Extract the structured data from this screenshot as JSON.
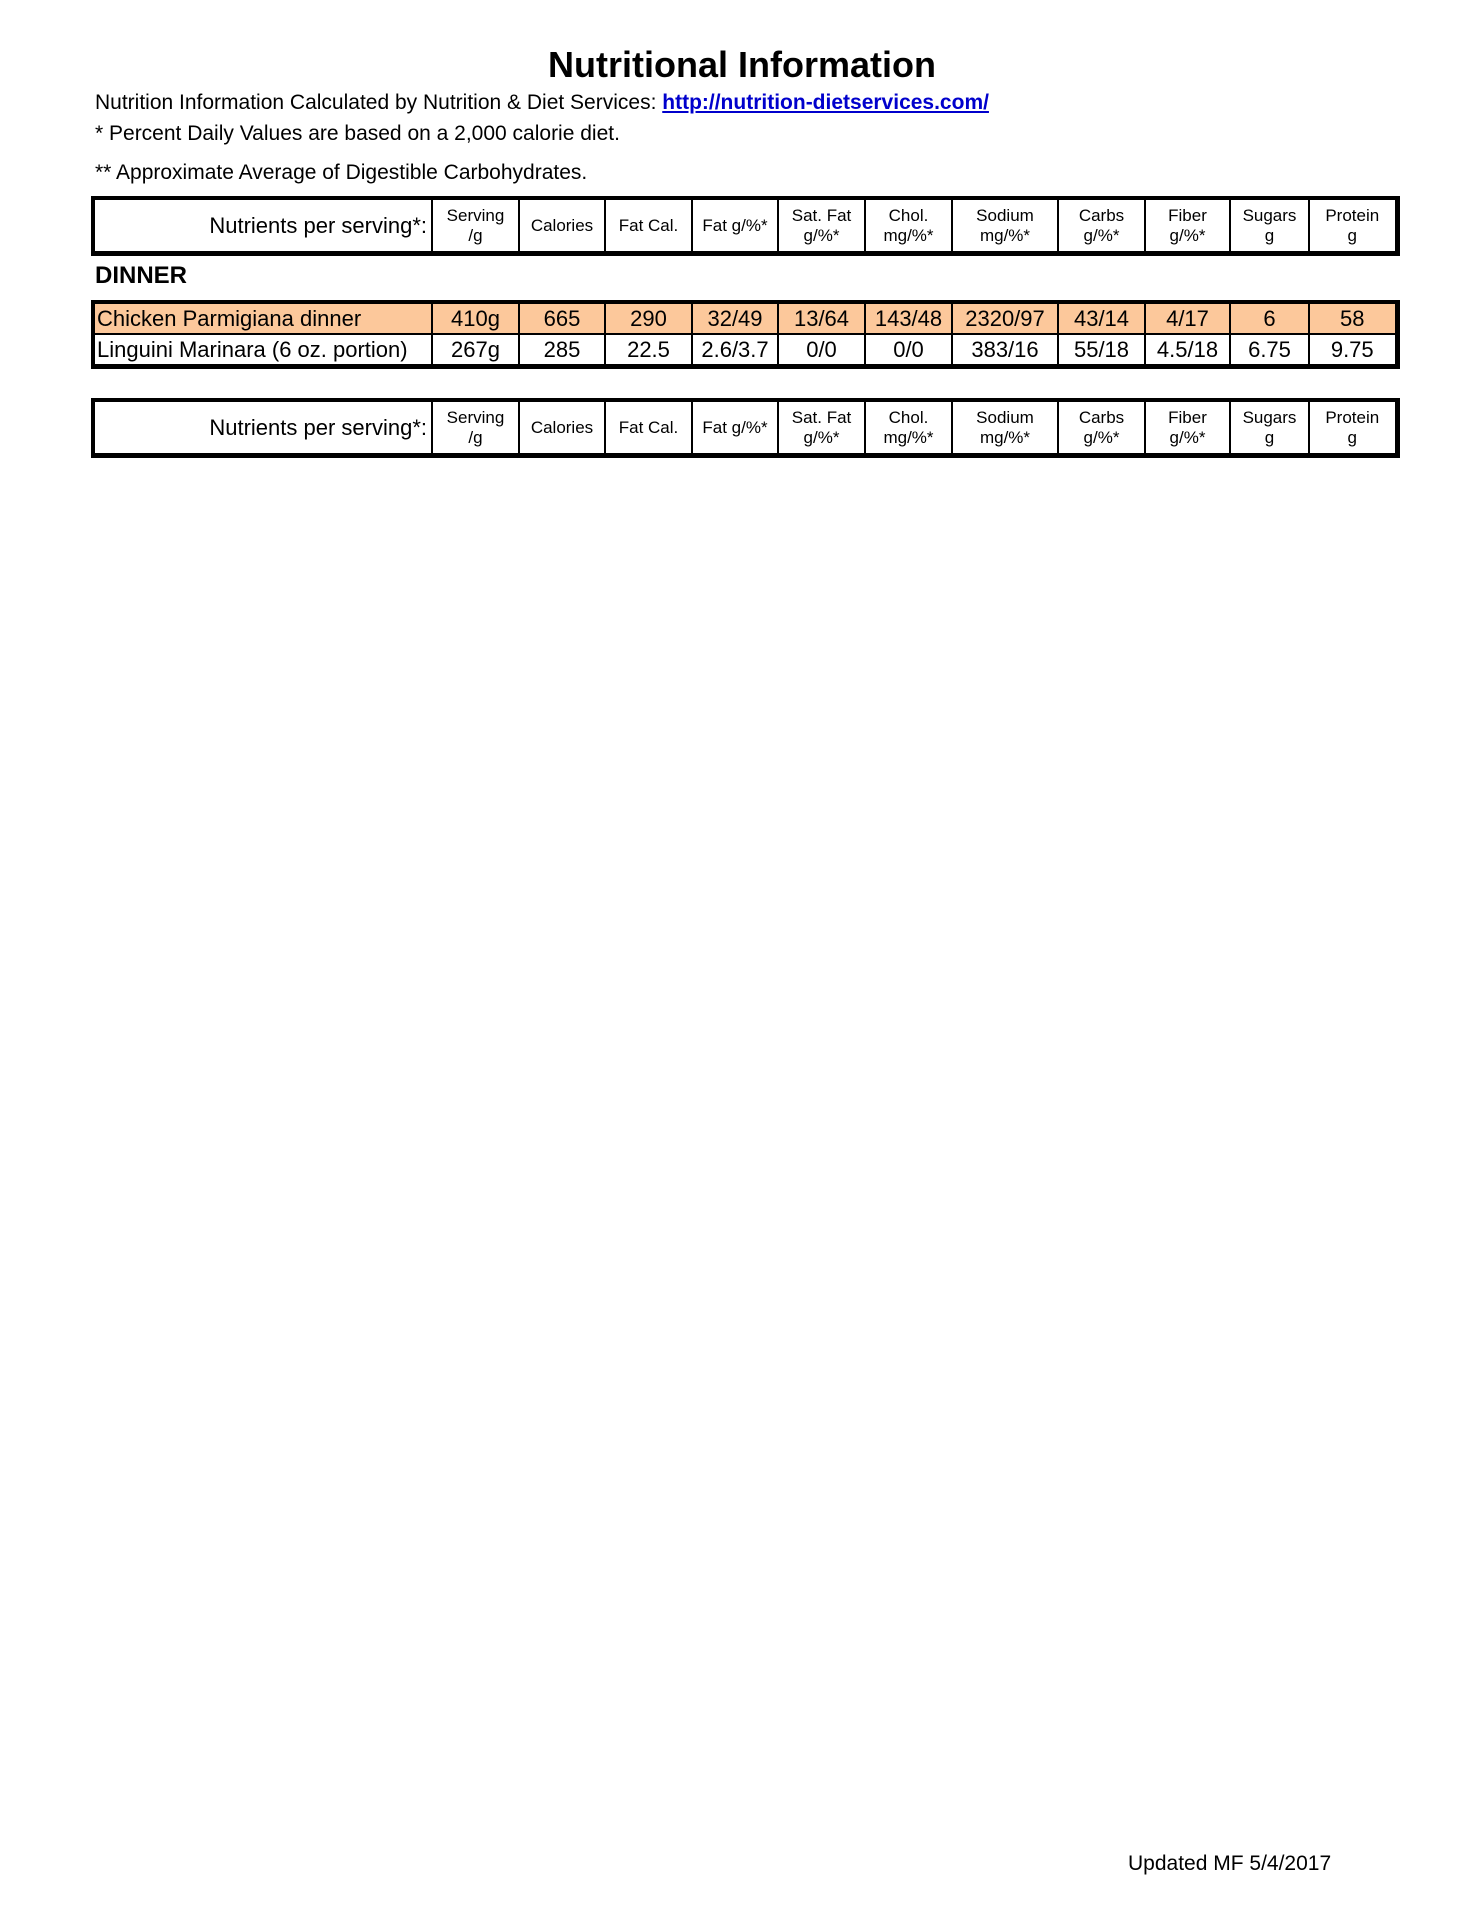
{
  "title": "Nutritional Information",
  "notes": {
    "calculated_by": "Nutrition Information Calculated by Nutrition & Diet Services: ",
    "link": "http://nutrition-dietservices.com/",
    "daily_values": "* Percent Daily Values are based on a 2,000 calorie diet.",
    "carbs_note": "** Approximate Average of Digestible Carbohydrates."
  },
  "header": [
    "Nutrients per serving*:",
    "Serving\n/g",
    "Calories",
    "Fat Cal.",
    "Fat g/%*",
    "Sat. Fat\ng/%*",
    "Chol.\nmg/%*",
    "Sodium\nmg/%*",
    "Carbs\ng/%*",
    "Fiber\ng/%*",
    "Sugars\ng",
    "Protein\ng"
  ],
  "section": "DINNER",
  "highlight_color": "#fcc89b",
  "rows": [
    {
      "highlighted": true,
      "cells": [
        "Chicken Parmigiana dinner",
        "410g",
        "665",
        "290",
        "32/49",
        "13/64",
        "143/48",
        "2320/97",
        "43/14",
        "4/17",
        "6",
        "58"
      ]
    },
    {
      "highlighted": false,
      "cells": [
        "Linguini Marinara (6 oz. portion)",
        "267g",
        "285",
        "22.5",
        "2.6/3.7",
        "0/0",
        "0/0",
        "383/16",
        "55/18",
        "4.5/18",
        "6.75",
        "9.75"
      ]
    }
  ],
  "footer": "Updated MF 5/4/2017"
}
